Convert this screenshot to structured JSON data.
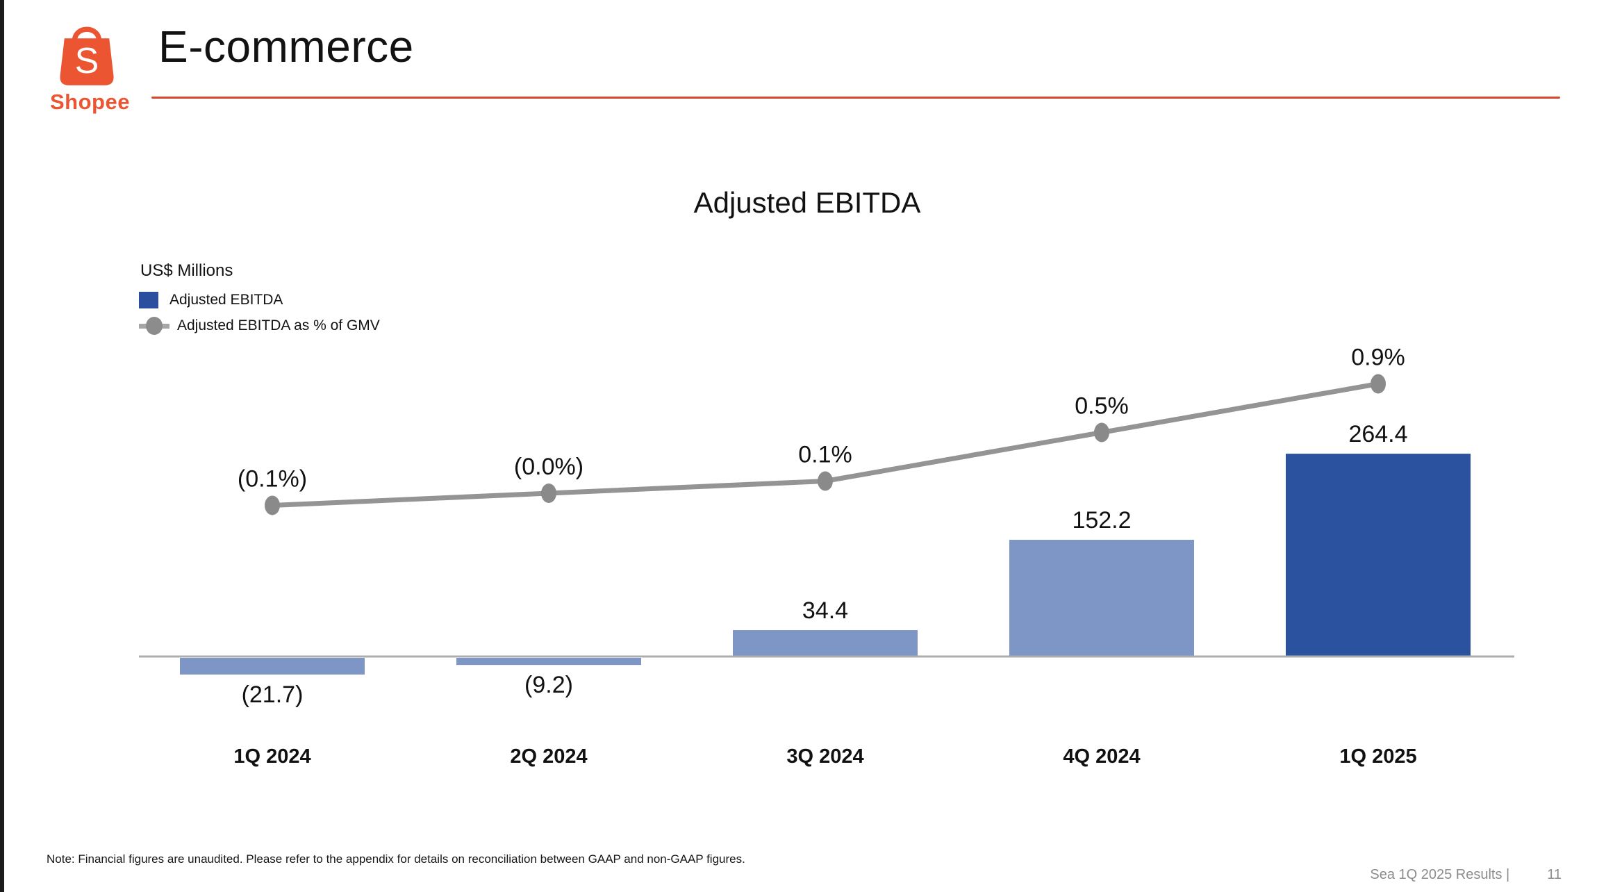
{
  "header": {
    "logo_text": "Shopee",
    "logo_initial": "S",
    "title": "E-commerce",
    "logo_color": "#EB5532",
    "rule_color": "#D6452E"
  },
  "chart": {
    "title": "Adjusted EBITDA",
    "units": "US$ Millions",
    "legend": [
      {
        "label": "Adjusted EBITDA",
        "swatch_color": "#2B4F9F",
        "type": "bar"
      },
      {
        "label": "Adjusted EBITDA as % of GMV",
        "marker_color": "#8C8C8C",
        "type": "line"
      }
    ]
  },
  "chart_data": {
    "type": "bar+line",
    "title": "Adjusted EBITDA",
    "xlabel": "",
    "ylabel": "US$ Millions",
    "categories": [
      "1Q 2024",
      "2Q 2024",
      "3Q 2024",
      "4Q 2024",
      "1Q 2025"
    ],
    "series": [
      {
        "name": "Adjusted EBITDA",
        "type": "bar",
        "values": [
          -21.7,
          -9.2,
          34.4,
          152.2,
          264.4
        ],
        "value_labels": [
          "(21.7)",
          "(9.2)",
          "34.4",
          "152.2",
          "264.4"
        ],
        "bar_colors": [
          "#7E96C6",
          "#7E96C6",
          "#7E96C6",
          "#7E96C6",
          "#2B529F"
        ]
      },
      {
        "name": "Adjusted EBITDA as % of GMV",
        "type": "line",
        "values": [
          -0.1,
          -0.0,
          0.1,
          0.5,
          0.9
        ],
        "value_labels": [
          "(0.1%)",
          "(0.0%)",
          "0.1%",
          "0.5%",
          "0.9%"
        ],
        "line_color": "#949494",
        "dot_color": "#8A8A8A"
      }
    ],
    "ylim": [
      -50,
      300
    ],
    "y2lim": [
      -0.35,
      1.35
    ],
    "grid": false,
    "legend_position": "top-left",
    "axis_color": "#ACACAC",
    "label_color": "#111111"
  },
  "footer": {
    "note": "Note: Financial figures are unaudited. Please refer to the appendix for details on reconciliation between GAAP and non-GAAP figures.",
    "results_label": "Sea 1Q 2025 Results |",
    "page_number": "11"
  }
}
